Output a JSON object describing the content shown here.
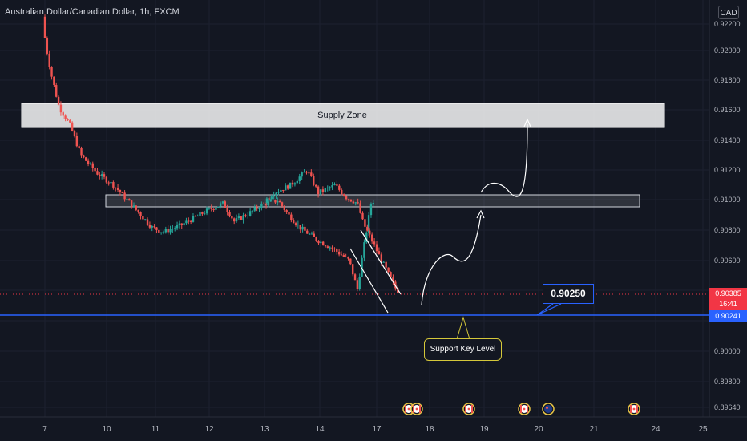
{
  "symbol_title": "Australian Dollar/Canadian Dollar, 1h, FXCM",
  "currency_button": "CAD",
  "price_axis_ticks": [
    "0.92200",
    "0.92000",
    "0.91800",
    "0.91600",
    "0.91400",
    "0.91200",
    "0.91000",
    "0.90800",
    "0.90600",
    "0.90000",
    "0.89800",
    "0.89640"
  ],
  "time_axis_ticks": [
    "7",
    "10",
    "11",
    "12",
    "13",
    "14",
    "17",
    "18",
    "19",
    "20",
    "21",
    "24",
    "25"
  ],
  "current_price_tag": {
    "price": "0.90385",
    "countdown": "16:41",
    "color": "#f23645"
  },
  "horizontal_line_tag": {
    "price": "0.90241",
    "color": "#2962ff"
  },
  "annotations": {
    "supply_zone_label": "Supply Zone",
    "price_callout": "0.90250",
    "support_label": "Support Key Level"
  },
  "event_markers": [
    {
      "icon": "canada-flag-icon"
    },
    {
      "icon": "canada-flag-icon"
    },
    {
      "icon": "canada-flag-icon"
    },
    {
      "icon": "canada-flag-icon"
    },
    {
      "icon": "australia-flag-icon"
    },
    {
      "icon": "canada-flag-icon"
    }
  ],
  "colors": {
    "background": "#131722",
    "up_candle": "#26a69a",
    "down_candle": "#ef5350",
    "axis_text": "#b2b5be"
  },
  "chart_data": {
    "type": "candlestick",
    "title": "Australian Dollar/Canadian Dollar, 1h, FXCM",
    "ylim": [
      0.8964,
      0.9222
    ],
    "close_path": [
      [
        7.0,
        0.9222
      ],
      [
        7.05,
        0.9205
      ],
      [
        7.15,
        0.9185
      ],
      [
        7.3,
        0.9162
      ],
      [
        7.5,
        0.915
      ],
      [
        7.7,
        0.913
      ],
      [
        8.0,
        0.9118
      ],
      [
        8.3,
        0.911
      ],
      [
        8.6,
        0.9098
      ],
      [
        8.8,
        0.909
      ],
      [
        9.0,
        0.9082
      ],
      [
        9.2,
        0.9079
      ],
      [
        9.5,
        0.9083
      ],
      [
        10.0,
        0.9093
      ],
      [
        10.3,
        0.9098
      ],
      [
        10.5,
        0.9086
      ],
      [
        10.8,
        0.9092
      ],
      [
        11.0,
        0.9097
      ],
      [
        11.3,
        0.91
      ],
      [
        11.5,
        0.909
      ],
      [
        11.7,
        0.9082
      ],
      [
        12.0,
        0.9074
      ],
      [
        12.3,
        0.9068
      ],
      [
        12.6,
        0.906
      ],
      [
        12.75,
        0.9041
      ],
      [
        12.85,
        0.9065
      ],
      [
        13.0,
        0.9098
      ],
      [
        13.2,
        0.9105
      ],
      [
        13.5,
        0.911
      ],
      [
        13.8,
        0.912
      ],
      [
        14.0,
        0.9105
      ],
      [
        14.3,
        0.911
      ],
      [
        14.5,
        0.9102
      ],
      [
        14.7,
        0.9098
      ],
      [
        14.8,
        0.9085
      ],
      [
        15.0,
        0.907
      ],
      [
        15.1,
        0.9062
      ],
      [
        15.2,
        0.9055
      ],
      [
        15.3,
        0.9047
      ],
      [
        15.4,
        0.904
      ]
    ],
    "supply_zone": {
      "upper": 0.9164,
      "lower": 0.915
    },
    "resistance_zone": {
      "upper": 0.9103,
      "lower": 0.9096
    },
    "horizontal_line": 0.90241,
    "last_price": 0.90385
  }
}
